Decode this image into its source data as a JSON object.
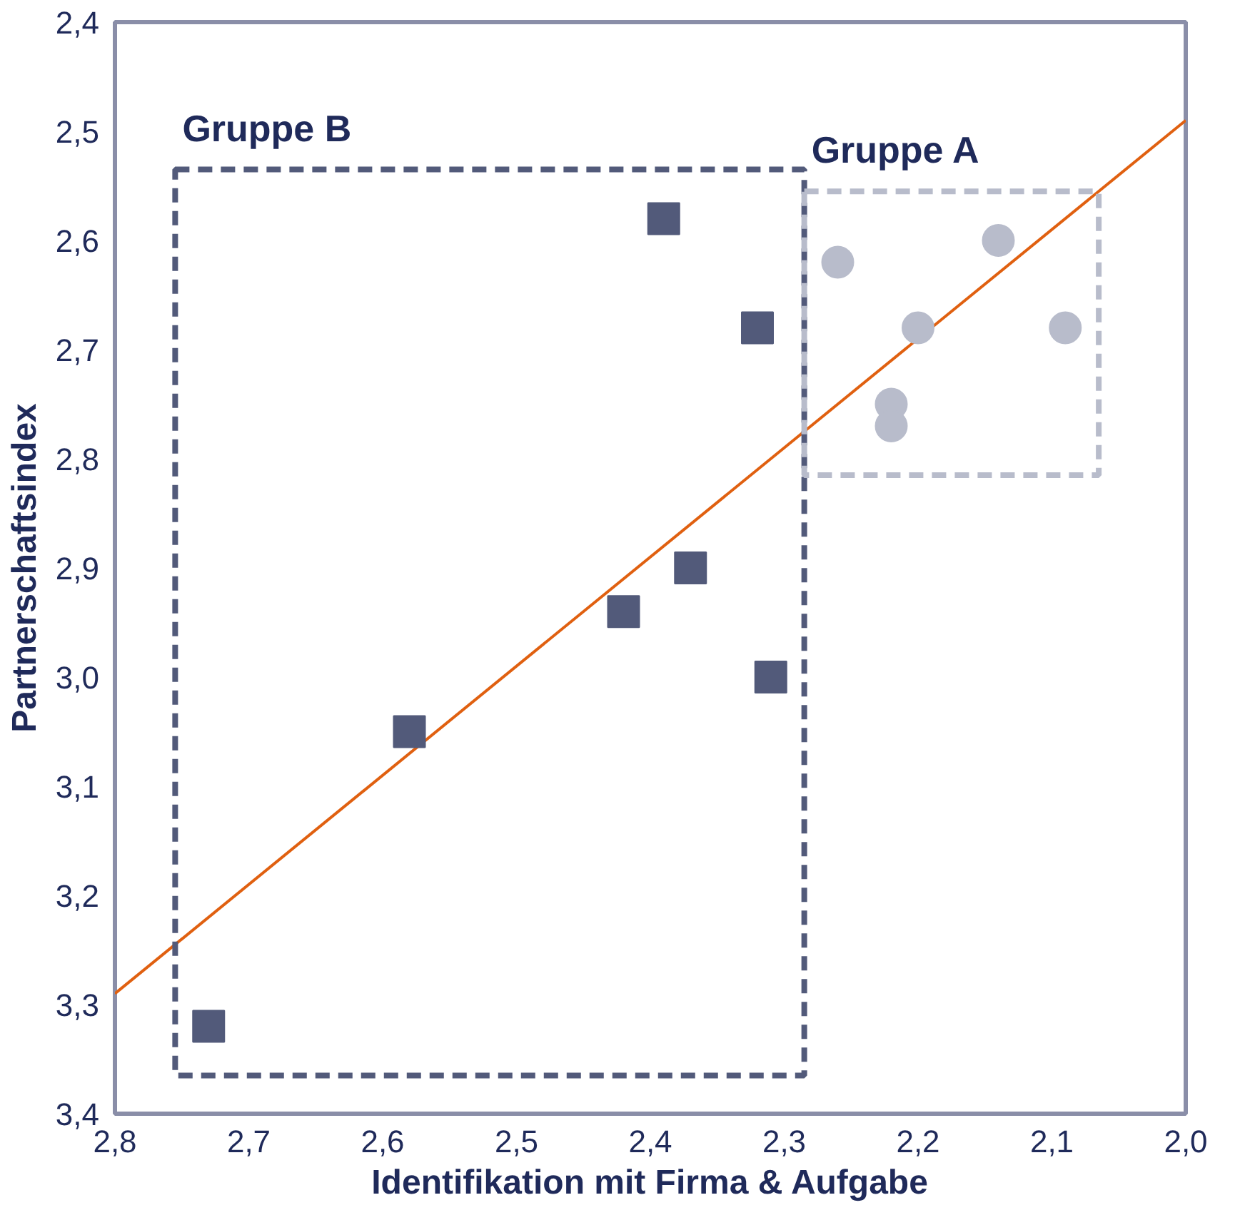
{
  "chart_data": {
    "type": "scatter",
    "xlabel": "Identifikation mit Firma & Aufgabe",
    "ylabel": "Partnerschaftsindex",
    "xlim": [
      2.8,
      2.0
    ],
    "ylim": [
      3.4,
      2.4
    ],
    "xticks": [
      {
        "value": 2.8,
        "label": "2,8"
      },
      {
        "value": 2.7,
        "label": "2,7"
      },
      {
        "value": 2.6,
        "label": "2,6"
      },
      {
        "value": 2.5,
        "label": "2,5"
      },
      {
        "value": 2.4,
        "label": "2,4"
      },
      {
        "value": 2.3,
        "label": "2,3"
      },
      {
        "value": 2.2,
        "label": "2,2"
      },
      {
        "value": 2.1,
        "label": "2,1"
      },
      {
        "value": 2.0,
        "label": "2,0"
      }
    ],
    "yticks": [
      {
        "value": 2.4,
        "label": "2,4"
      },
      {
        "value": 2.5,
        "label": "2,5"
      },
      {
        "value": 2.6,
        "label": "2,6"
      },
      {
        "value": 2.7,
        "label": "2,7"
      },
      {
        "value": 2.8,
        "label": "2,8"
      },
      {
        "value": 2.9,
        "label": "2,9"
      },
      {
        "value": 3.0,
        "label": "3,0"
      },
      {
        "value": 3.1,
        "label": "3,1"
      },
      {
        "value": 3.2,
        "label": "3,2"
      },
      {
        "value": 3.3,
        "label": "3,3"
      },
      {
        "value": 3.4,
        "label": "3,4"
      }
    ],
    "series": [
      {
        "type": "line",
        "color": "#e06010",
        "line_style": "solid",
        "x": [
          2.8,
          2.0
        ],
        "values": [
          3.29,
          2.49
        ]
      },
      {
        "marker": "square",
        "color": "#525a7a",
        "x": [
          2.73,
          2.58,
          2.42,
          2.37,
          2.31,
          2.32,
          2.39
        ],
        "values": [
          3.32,
          3.05,
          2.94,
          2.9,
          3.0,
          2.68,
          2.58
        ]
      },
      {
        "marker": "circle",
        "color": "#b8bccb",
        "x": [
          2.26,
          2.14,
          2.2,
          2.09,
          2.22,
          2.22
        ],
        "values": [
          2.62,
          2.6,
          2.68,
          2.68,
          2.75,
          2.77
        ]
      }
    ],
    "annotations": [
      "Gruppe B",
      "Gruppe A"
    ]
  }
}
